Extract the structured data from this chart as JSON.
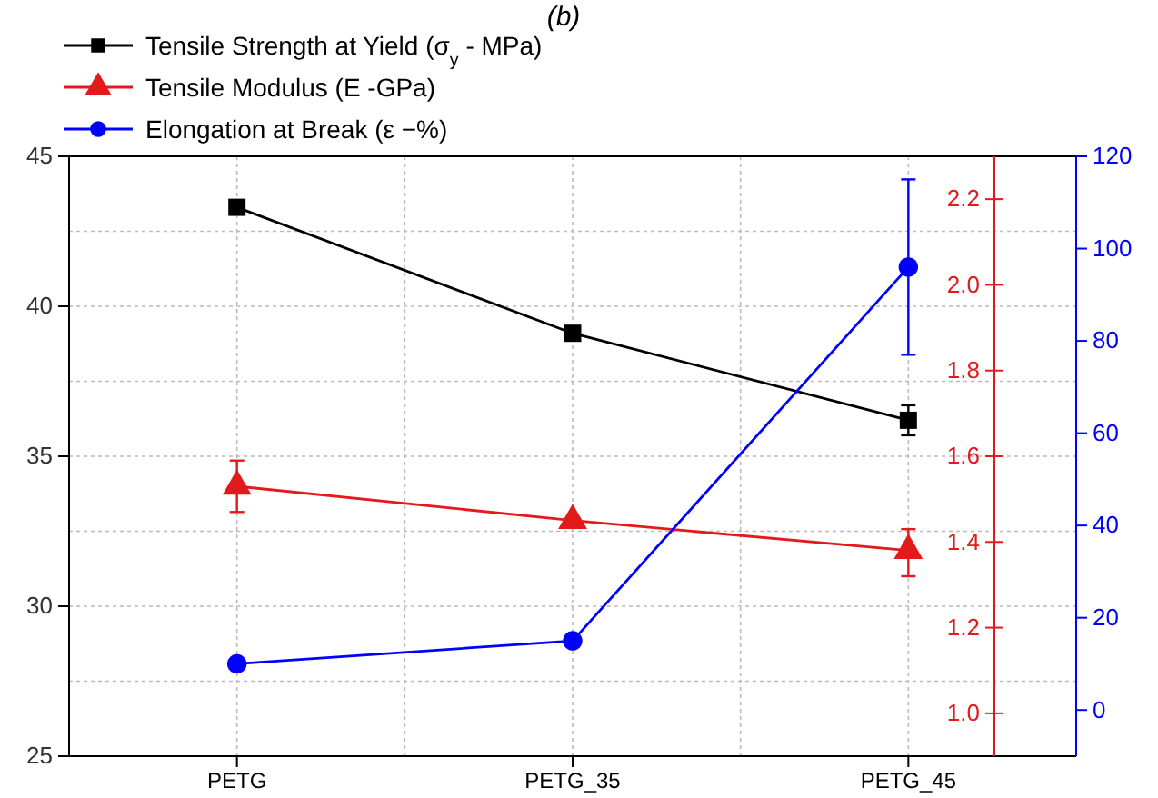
{
  "chart_data": {
    "type": "line",
    "title": "(b)",
    "categories": [
      "PETG",
      "PETG_35",
      "PETG_45"
    ],
    "ylim": [
      25,
      45
    ],
    "yticks": [
      25,
      30,
      35,
      40,
      45
    ],
    "y2lim": [
      0.9,
      2.3
    ],
    "y2ticks": [
      {
        "value": 1.0,
        "label": "1.0"
      },
      {
        "value": 1.2,
        "label": "1.2"
      },
      {
        "value": 1.4,
        "label": "1.4"
      },
      {
        "value": 1.6,
        "label": "1.6"
      },
      {
        "value": 1.8,
        "label": "1.8"
      },
      {
        "value": 2.0,
        "label": "2.0"
      },
      {
        "value": 2.2,
        "label": "2.2"
      }
    ],
    "y3lim": [
      -10,
      120
    ],
    "y3ticks": [
      0,
      20,
      40,
      60,
      80,
      100,
      120
    ],
    "grid": true,
    "legend": "top left",
    "series": [
      {
        "name": "Tensile Strength at Yield (σ$_{y}$ - MPa)",
        "color": "#000000",
        "marker": "square",
        "values": [
          43.3,
          39.1,
          36.2
        ],
        "errors": [
          null,
          0.2,
          0.5
        ]
      },
      {
        "name": "Tensile Modulus (E -GPa)",
        "color": "#e31a1c",
        "marker": "triangle",
        "axis": "y2",
        "values": [
          1.53,
          1.45,
          1.38
        ],
        "errors": [
          [
            1.47,
            1.59
          ],
          null,
          [
            1.32,
            1.43
          ]
        ]
      },
      {
        "name": "Elongation at Break (ε −%)",
        "color": "#0000ff",
        "marker": "circle",
        "axis": "y3",
        "values": [
          10,
          15,
          96
        ],
        "errors": [
          null,
          null,
          [
            77,
            115
          ]
        ]
      }
    ]
  }
}
